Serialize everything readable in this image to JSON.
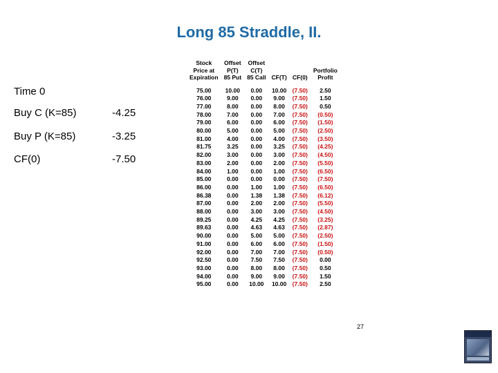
{
  "title": "Long 85 Straddle, II.",
  "left_panel": {
    "time_label": "Time 0",
    "rows": [
      {
        "label": "Buy C (K=85)",
        "value": "-4.25"
      },
      {
        "label": "Buy P (K=85)",
        "value": "-3.25"
      },
      {
        "label": "CF(0)",
        "value": "-7.50"
      }
    ]
  },
  "table": {
    "headers": [
      [
        "Stock",
        "Price at",
        "Expiration"
      ],
      [
        "Offset",
        "P(T)",
        "85 Put"
      ],
      [
        "Offset",
        "C(T)",
        "85 Call"
      ],
      [
        "",
        "",
        "CF(T)"
      ],
      [
        "",
        "",
        "CF(0)"
      ],
      [
        "",
        "Portfolio",
        "Profit"
      ]
    ],
    "rows": [
      [
        "75.00",
        "10.00",
        "0.00",
        "10.00",
        "(7.50)",
        "2.50"
      ],
      [
        "76.00",
        "9.00",
        "0.00",
        "9.00",
        "(7.50)",
        "1.50"
      ],
      [
        "77.00",
        "8.00",
        "0.00",
        "8.00",
        "(7.50)",
        "0.50"
      ],
      [
        "78.00",
        "7.00",
        "0.00",
        "7.00",
        "(7.50)",
        "(0.50)"
      ],
      [
        "79.00",
        "6.00",
        "0.00",
        "6.00",
        "(7.50)",
        "(1.50)"
      ],
      [
        "80.00",
        "5.00",
        "0.00",
        "5.00",
        "(7.50)",
        "(2.50)"
      ],
      [
        "81.00",
        "4.00",
        "0.00",
        "4.00",
        "(7.50)",
        "(3.50)"
      ],
      [
        "81.75",
        "3.25",
        "0.00",
        "3.25",
        "(7.50)",
        "(4.25)"
      ],
      [
        "82.00",
        "3.00",
        "0.00",
        "3.00",
        "(7.50)",
        "(4.50)"
      ],
      [
        "83.00",
        "2.00",
        "0.00",
        "2.00",
        "(7.50)",
        "(5.50)"
      ],
      [
        "84.00",
        "1.00",
        "0.00",
        "1.00",
        "(7.50)",
        "(6.50)"
      ],
      [
        "85.00",
        "0.00",
        "0.00",
        "0.00",
        "(7.50)",
        "(7.50)"
      ],
      [
        "86.00",
        "0.00",
        "1.00",
        "1.00",
        "(7.50)",
        "(6.50)"
      ],
      [
        "86.38",
        "0.00",
        "1.38",
        "1.38",
        "(7.50)",
        "(6.12)"
      ],
      [
        "87.00",
        "0.00",
        "2.00",
        "2.00",
        "(7.50)",
        "(5.50)"
      ],
      [
        "88.00",
        "0.00",
        "3.00",
        "3.00",
        "(7.50)",
        "(4.50)"
      ],
      [
        "89.25",
        "0.00",
        "4.25",
        "4.25",
        "(7.50)",
        "(3.25)"
      ],
      [
        "89.63",
        "0.00",
        "4.63",
        "4.63",
        "(7.50)",
        "(2.87)"
      ],
      [
        "90.00",
        "0.00",
        "5.00",
        "5.00",
        "(7.50)",
        "(2.50)"
      ],
      [
        "91.00",
        "0.00",
        "6.00",
        "6.00",
        "(7.50)",
        "(1.50)"
      ],
      [
        "92.00",
        "0.00",
        "7.00",
        "7.00",
        "(7.50)",
        "(0.50)"
      ],
      [
        "92.50",
        "0.00",
        "7.50",
        "7.50",
        "(7.50)",
        "0.00"
      ],
      [
        "93.00",
        "0.00",
        "8.00",
        "8.00",
        "(7.50)",
        "0.50"
      ],
      [
        "94.00",
        "0.00",
        "9.00",
        "9.00",
        "(7.50)",
        "1.50"
      ],
      [
        "95.00",
        "0.00",
        "10.00",
        "10.00",
        "(7.50)",
        "2.50"
      ]
    ]
  },
  "page_number": "27",
  "colors": {
    "title": "#1f6aa5",
    "negative": "#cc1111"
  },
  "logo_icon": "book-cover-icon"
}
